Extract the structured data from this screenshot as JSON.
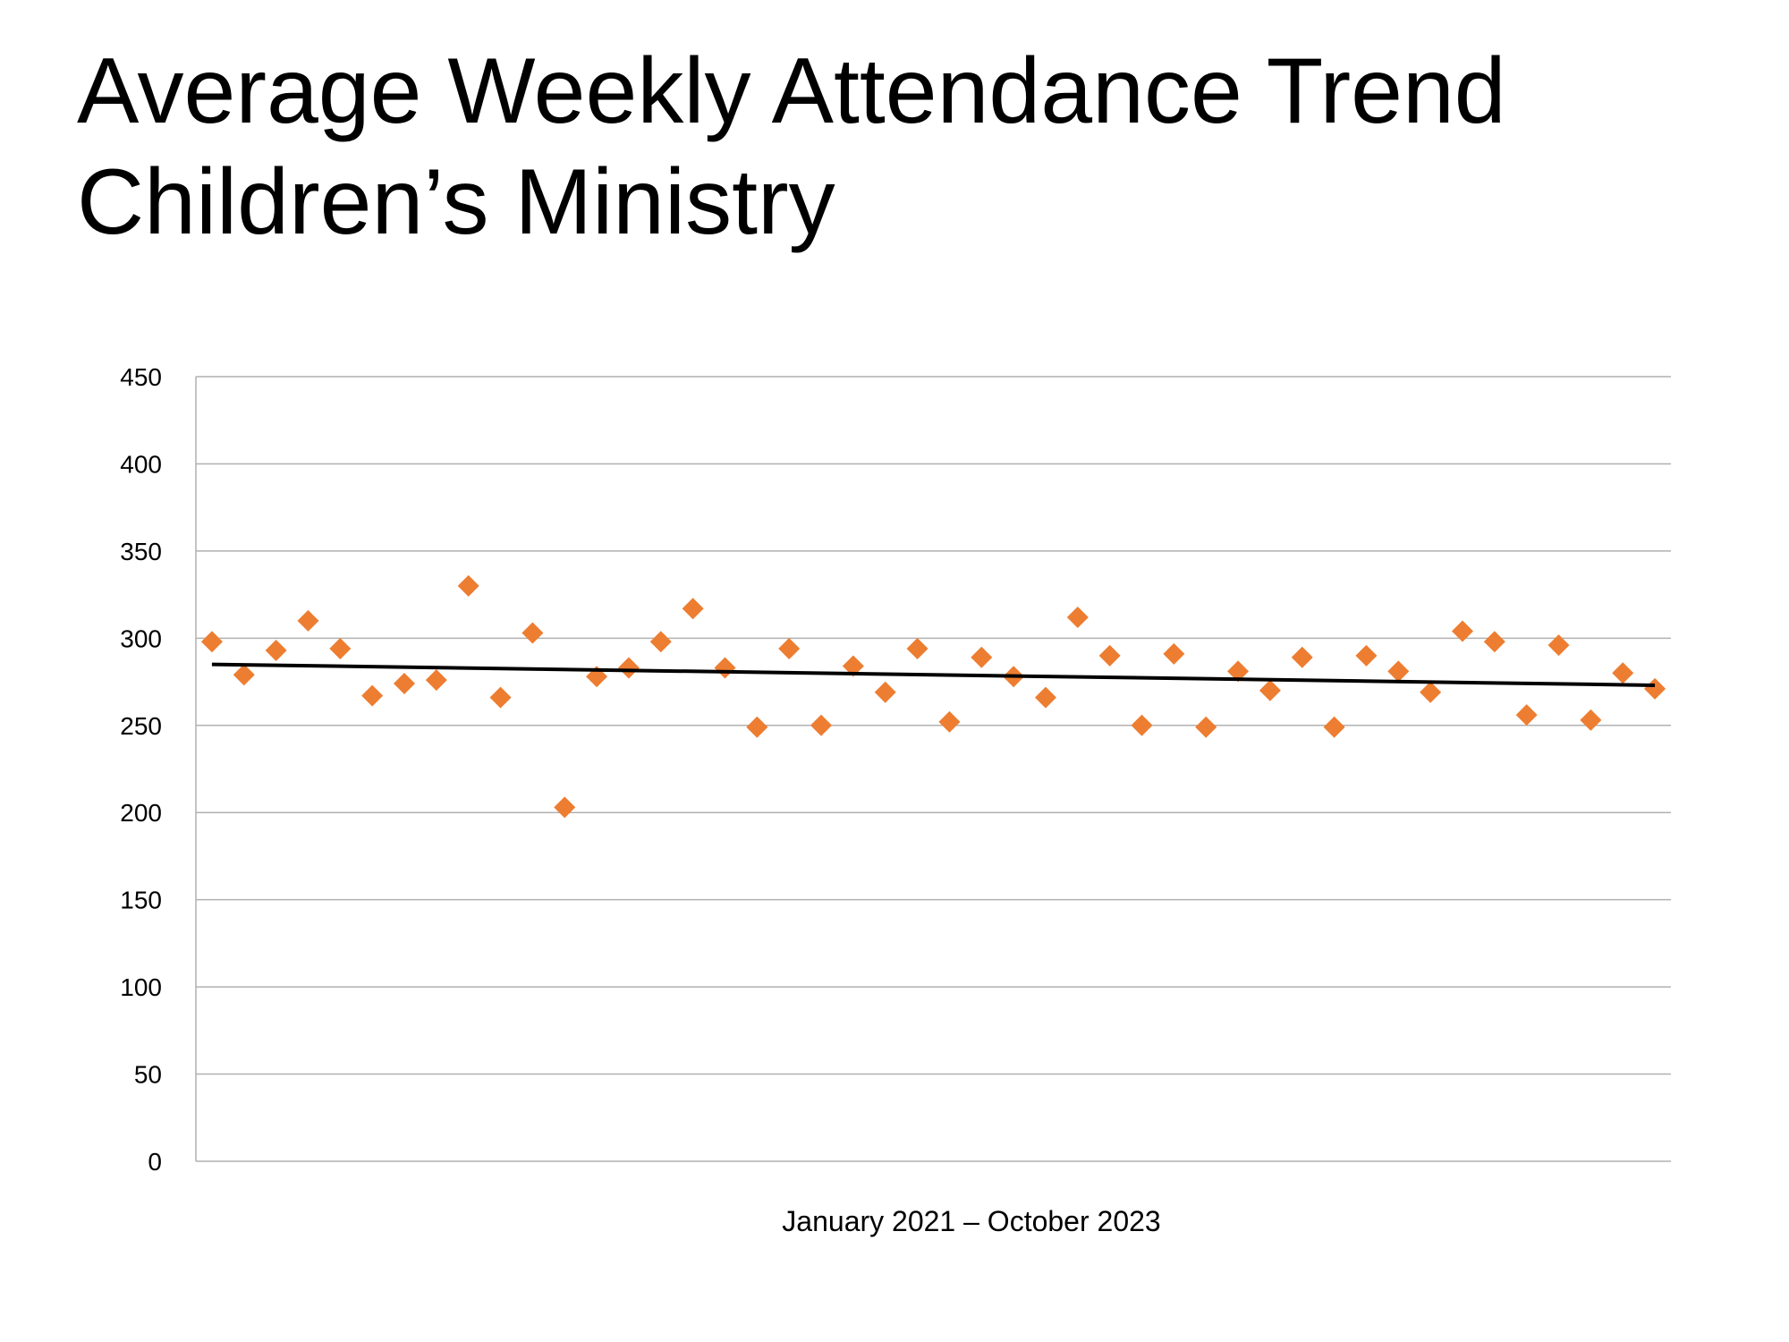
{
  "title_line1": "Average Weekly Attendance Trend",
  "title_line2": "Children’s Ministry",
  "chart_data": {
    "type": "scatter",
    "title": "Average Weekly Attendance Trend Children’s Ministry",
    "xlabel": "January 2021 – October 2023",
    "ylabel": "",
    "ylim": [
      0,
      450
    ],
    "yticks": [
      0,
      50,
      100,
      150,
      200,
      250,
      300,
      350,
      400,
      450
    ],
    "grid": "horizontal",
    "marker": "diamond",
    "marker_color": "#ED7D31",
    "trendline_color": "#000000",
    "values": [
      298,
      279,
      293,
      310,
      294,
      267,
      274,
      276,
      330,
      266,
      303,
      203,
      278,
      283,
      298,
      317,
      283,
      249,
      294,
      250,
      284,
      269,
      294,
      252,
      289,
      278,
      266,
      312,
      290,
      250,
      291,
      249,
      281,
      270,
      289,
      249,
      290,
      281,
      269,
      304,
      298,
      256,
      296,
      253,
      280,
      271
    ],
    "trendline": {
      "type": "linear",
      "start": 285,
      "end": 273
    }
  }
}
